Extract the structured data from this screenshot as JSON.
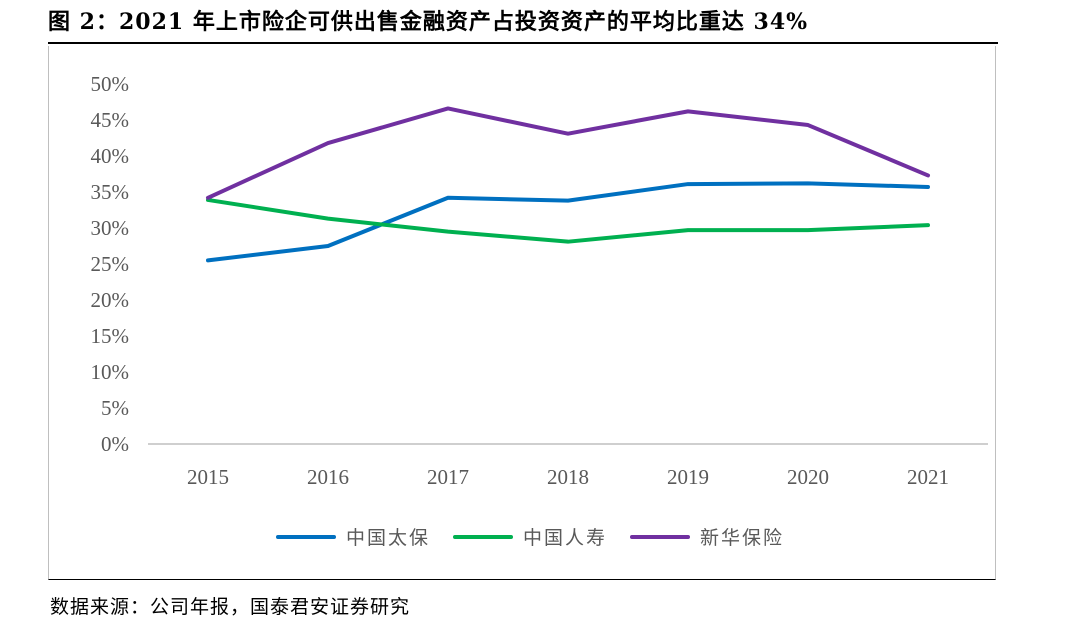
{
  "title": "图 2：2021 年上市险企可供出售金融资产占投资资产的平均比重达 34%",
  "source": "数据来源：公司年报，国泰君安证券研究",
  "chart_data": {
    "type": "line",
    "categories": [
      "2015",
      "2016",
      "2017",
      "2018",
      "2019",
      "2020",
      "2021"
    ],
    "y_ticks": [
      "0%",
      "5%",
      "10%",
      "15%",
      "20%",
      "25%",
      "30%",
      "35%",
      "40%",
      "45%",
      "50%"
    ],
    "ylim": [
      0,
      50
    ],
    "grid": false,
    "legend_position": "bottom",
    "series": [
      {
        "name": "中国太保",
        "color": "#0070c0",
        "values": [
          25.5,
          27.5,
          34.2,
          33.8,
          36.1,
          36.2,
          35.7
        ]
      },
      {
        "name": "中国人寿",
        "color": "#00b050",
        "values": [
          33.9,
          31.3,
          29.5,
          28.1,
          29.7,
          29.7,
          30.4
        ]
      },
      {
        "name": "新华保险",
        "color": "#7030a0",
        "values": [
          34.2,
          41.8,
          46.6,
          43.1,
          46.2,
          44.3,
          37.3
        ]
      }
    ]
  }
}
